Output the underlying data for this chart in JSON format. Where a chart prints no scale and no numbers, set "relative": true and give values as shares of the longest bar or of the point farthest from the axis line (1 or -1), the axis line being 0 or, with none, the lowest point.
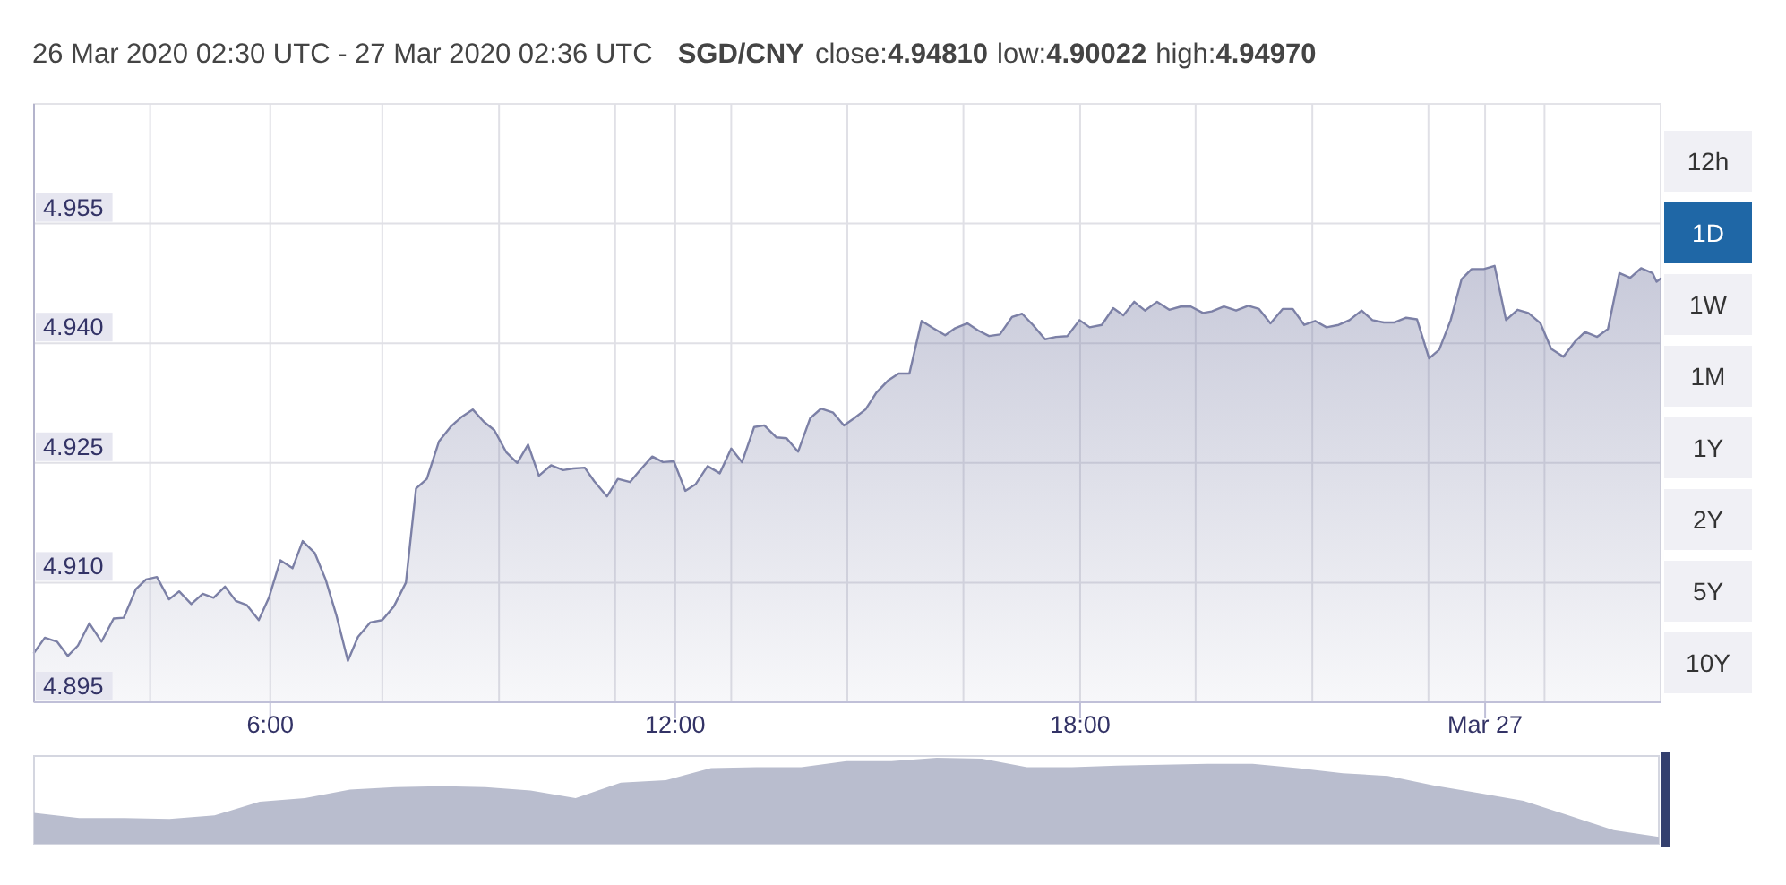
{
  "chart_data": [
    {
      "type": "area",
      "subtitle": "26 Mar 2020 02:30 UTC - 27 Mar 2020 02:36 UTC",
      "title": "SGD/CNY",
      "annotations": [
        "close:4.94810",
        "low:4.90022",
        "high:4.94970",
        "12h",
        "1D",
        "1W",
        "1M",
        "1Y",
        "2Y",
        "5Y",
        "10Y"
      ],
      "x": [
        2.5,
        2.66,
        2.84,
        3.0,
        3.15,
        3.32,
        3.5,
        3.68,
        3.83,
        4.01,
        4.16,
        4.32,
        4.5,
        4.65,
        4.83,
        5.0,
        5.16,
        5.33,
        5.49,
        5.65,
        5.83,
        5.98,
        6.15,
        6.33,
        6.48,
        6.66,
        6.82,
        6.98,
        7.15,
        7.3,
        7.48,
        7.66,
        7.83,
        8.01,
        8.16,
        8.32,
        8.5,
        8.68,
        8.84,
        9.0,
        9.16,
        9.32,
        9.5,
        9.66,
        9.82,
        9.98,
        10.16,
        10.34,
        10.49,
        10.66,
        10.8,
        10.99,
        11.15,
        11.33,
        11.48,
        11.66,
        11.82,
        11.98,
        12.15,
        12.3,
        12.48,
        12.66,
        12.83,
        12.99,
        13.17,
        13.32,
        13.5,
        13.65,
        13.82,
        14.0,
        14.16,
        14.34,
        14.5,
        14.65,
        14.82,
        14.98,
        15.15,
        15.31,
        15.47,
        15.65,
        15.82,
        16.0,
        16.15,
        16.33,
        16.49,
        16.65,
        16.81,
        16.99,
        17.14,
        17.3,
        17.48,
        17.64,
        17.81,
        17.99,
        18.14,
        18.32,
        18.49,
        18.64,
        18.8,
        18.96,
        19.14,
        19.32,
        19.49,
        19.64,
        19.82,
        19.95,
        20.13,
        20.31,
        20.49,
        20.65,
        20.82,
        21.0,
        21.15,
        21.32,
        21.48,
        21.65,
        21.83,
        21.99,
        22.17,
        22.33,
        22.5,
        22.65,
        22.83,
        22.99,
        23.17,
        23.32,
        23.49,
        23.65,
        23.8,
        23.98,
        24.14,
        24.31,
        24.48,
        24.64,
        24.82,
        24.98,
        25.16,
        25.33,
        25.48,
        25.66,
        25.82,
        25.99,
        26.15,
        26.31,
        26.48,
        26.54,
        26.6
      ],
      "values": [
        4.9012,
        4.9031,
        4.9026,
        4.9008,
        4.9021,
        4.9049,
        4.9026,
        4.9055,
        4.9056,
        4.9092,
        4.9104,
        4.9107,
        4.9079,
        4.9089,
        4.9073,
        4.9086,
        4.9081,
        4.9095,
        4.9077,
        4.9072,
        4.9053,
        4.9081,
        4.9128,
        4.9118,
        4.9152,
        4.9137,
        4.9104,
        4.9059,
        4.9002,
        4.9032,
        4.905,
        4.9053,
        4.907,
        4.91,
        4.9218,
        4.923,
        4.9277,
        4.9296,
        4.9308,
        4.9317,
        4.9302,
        4.9291,
        4.9263,
        4.925,
        4.9273,
        4.9234,
        4.9247,
        4.9241,
        4.9243,
        4.9244,
        4.9227,
        4.9208,
        4.923,
        4.9226,
        4.9241,
        4.9258,
        4.9251,
        4.9252,
        4.9215,
        4.9223,
        4.9246,
        4.9237,
        4.9268,
        4.9251,
        4.9295,
        4.9297,
        4.9282,
        4.9281,
        4.9264,
        4.9306,
        4.9318,
        4.9313,
        4.9297,
        4.9306,
        4.9317,
        4.9338,
        4.9353,
        4.9362,
        4.9362,
        4.9428,
        4.9419,
        4.941,
        4.9419,
        4.9425,
        4.9416,
        4.9409,
        4.9411,
        4.9433,
        4.9437,
        4.9423,
        4.9405,
        4.9408,
        4.9409,
        4.9429,
        4.942,
        4.9423,
        4.9444,
        4.9435,
        4.9452,
        4.9441,
        4.9452,
        4.9442,
        4.9446,
        4.9446,
        4.9438,
        4.944,
        4.9446,
        4.9441,
        4.9447,
        4.9443,
        4.9425,
        4.9443,
        4.9443,
        4.9423,
        4.9428,
        4.942,
        4.9423,
        4.9429,
        4.9441,
        4.9429,
        4.9426,
        4.9426,
        4.9432,
        4.943,
        4.9381,
        4.9392,
        4.9429,
        4.948,
        4.9493,
        4.9493,
        4.9497,
        4.9429,
        4.9442,
        4.9438,
        4.9425,
        4.9393,
        4.9383,
        4.9402,
        4.9414,
        4.9408,
        4.9418,
        4.9488,
        4.9482,
        4.9494,
        4.9488,
        4.9477,
        4.9481
      ],
      "color": "#7c80a6",
      "xlim": [
        2.5,
        26.6
      ],
      "xticks": [
        {
          "value": 4.22,
          "label": null
        },
        {
          "value": 6,
          "label": "6:00"
        },
        {
          "value": 7.66,
          "label": null
        },
        {
          "value": 9.39,
          "label": null
        },
        {
          "value": 11.11,
          "label": null
        },
        {
          "value": 12,
          "label": "12:00"
        },
        {
          "value": 12.83,
          "label": null
        },
        {
          "value": 14.55,
          "label": null
        },
        {
          "value": 16.27,
          "label": null
        },
        {
          "value": 18,
          "label": "18:00"
        },
        {
          "value": 19.71,
          "label": null
        },
        {
          "value": 21.44,
          "label": null
        },
        {
          "value": 23.16,
          "label": null
        },
        {
          "value": 24,
          "label": "Mar 27"
        },
        {
          "value": 24.88,
          "label": null
        }
      ],
      "ylim": [
        4.895,
        4.97
      ],
      "yticks": [
        4.895,
        {
          "value": 4.91,
          "label": "4.910"
        },
        4.925,
        {
          "value": 4.94,
          "label": "4.940"
        },
        4.955
      ],
      "grid": true
    },
    {
      "type": "area",
      "relative": true,
      "color": "#b9bdce",
      "categories": [
        null,
        null,
        null,
        null,
        null,
        null,
        null,
        null,
        null,
        null,
        null,
        null,
        null,
        null,
        null,
        null,
        null,
        null,
        null,
        null,
        null,
        null,
        null,
        null,
        null,
        null,
        null,
        null,
        null,
        null,
        null,
        null,
        null,
        null,
        null,
        null,
        null
      ],
      "values": [
        0.36,
        0.3,
        0.3,
        0.29,
        0.33,
        0.49,
        0.53,
        0.63,
        0.66,
        0.67,
        0.66,
        0.62,
        0.53,
        0.71,
        0.74,
        0.88,
        0.89,
        0.89,
        0.96,
        0.96,
        1,
        0.99,
        0.89,
        0.89,
        0.91,
        0.92,
        0.93,
        0.93,
        0.88,
        0.82,
        0.79,
        0.68,
        0.59,
        0.5,
        0.33,
        0.16,
        0.08
      ]
    }
  ]
}
